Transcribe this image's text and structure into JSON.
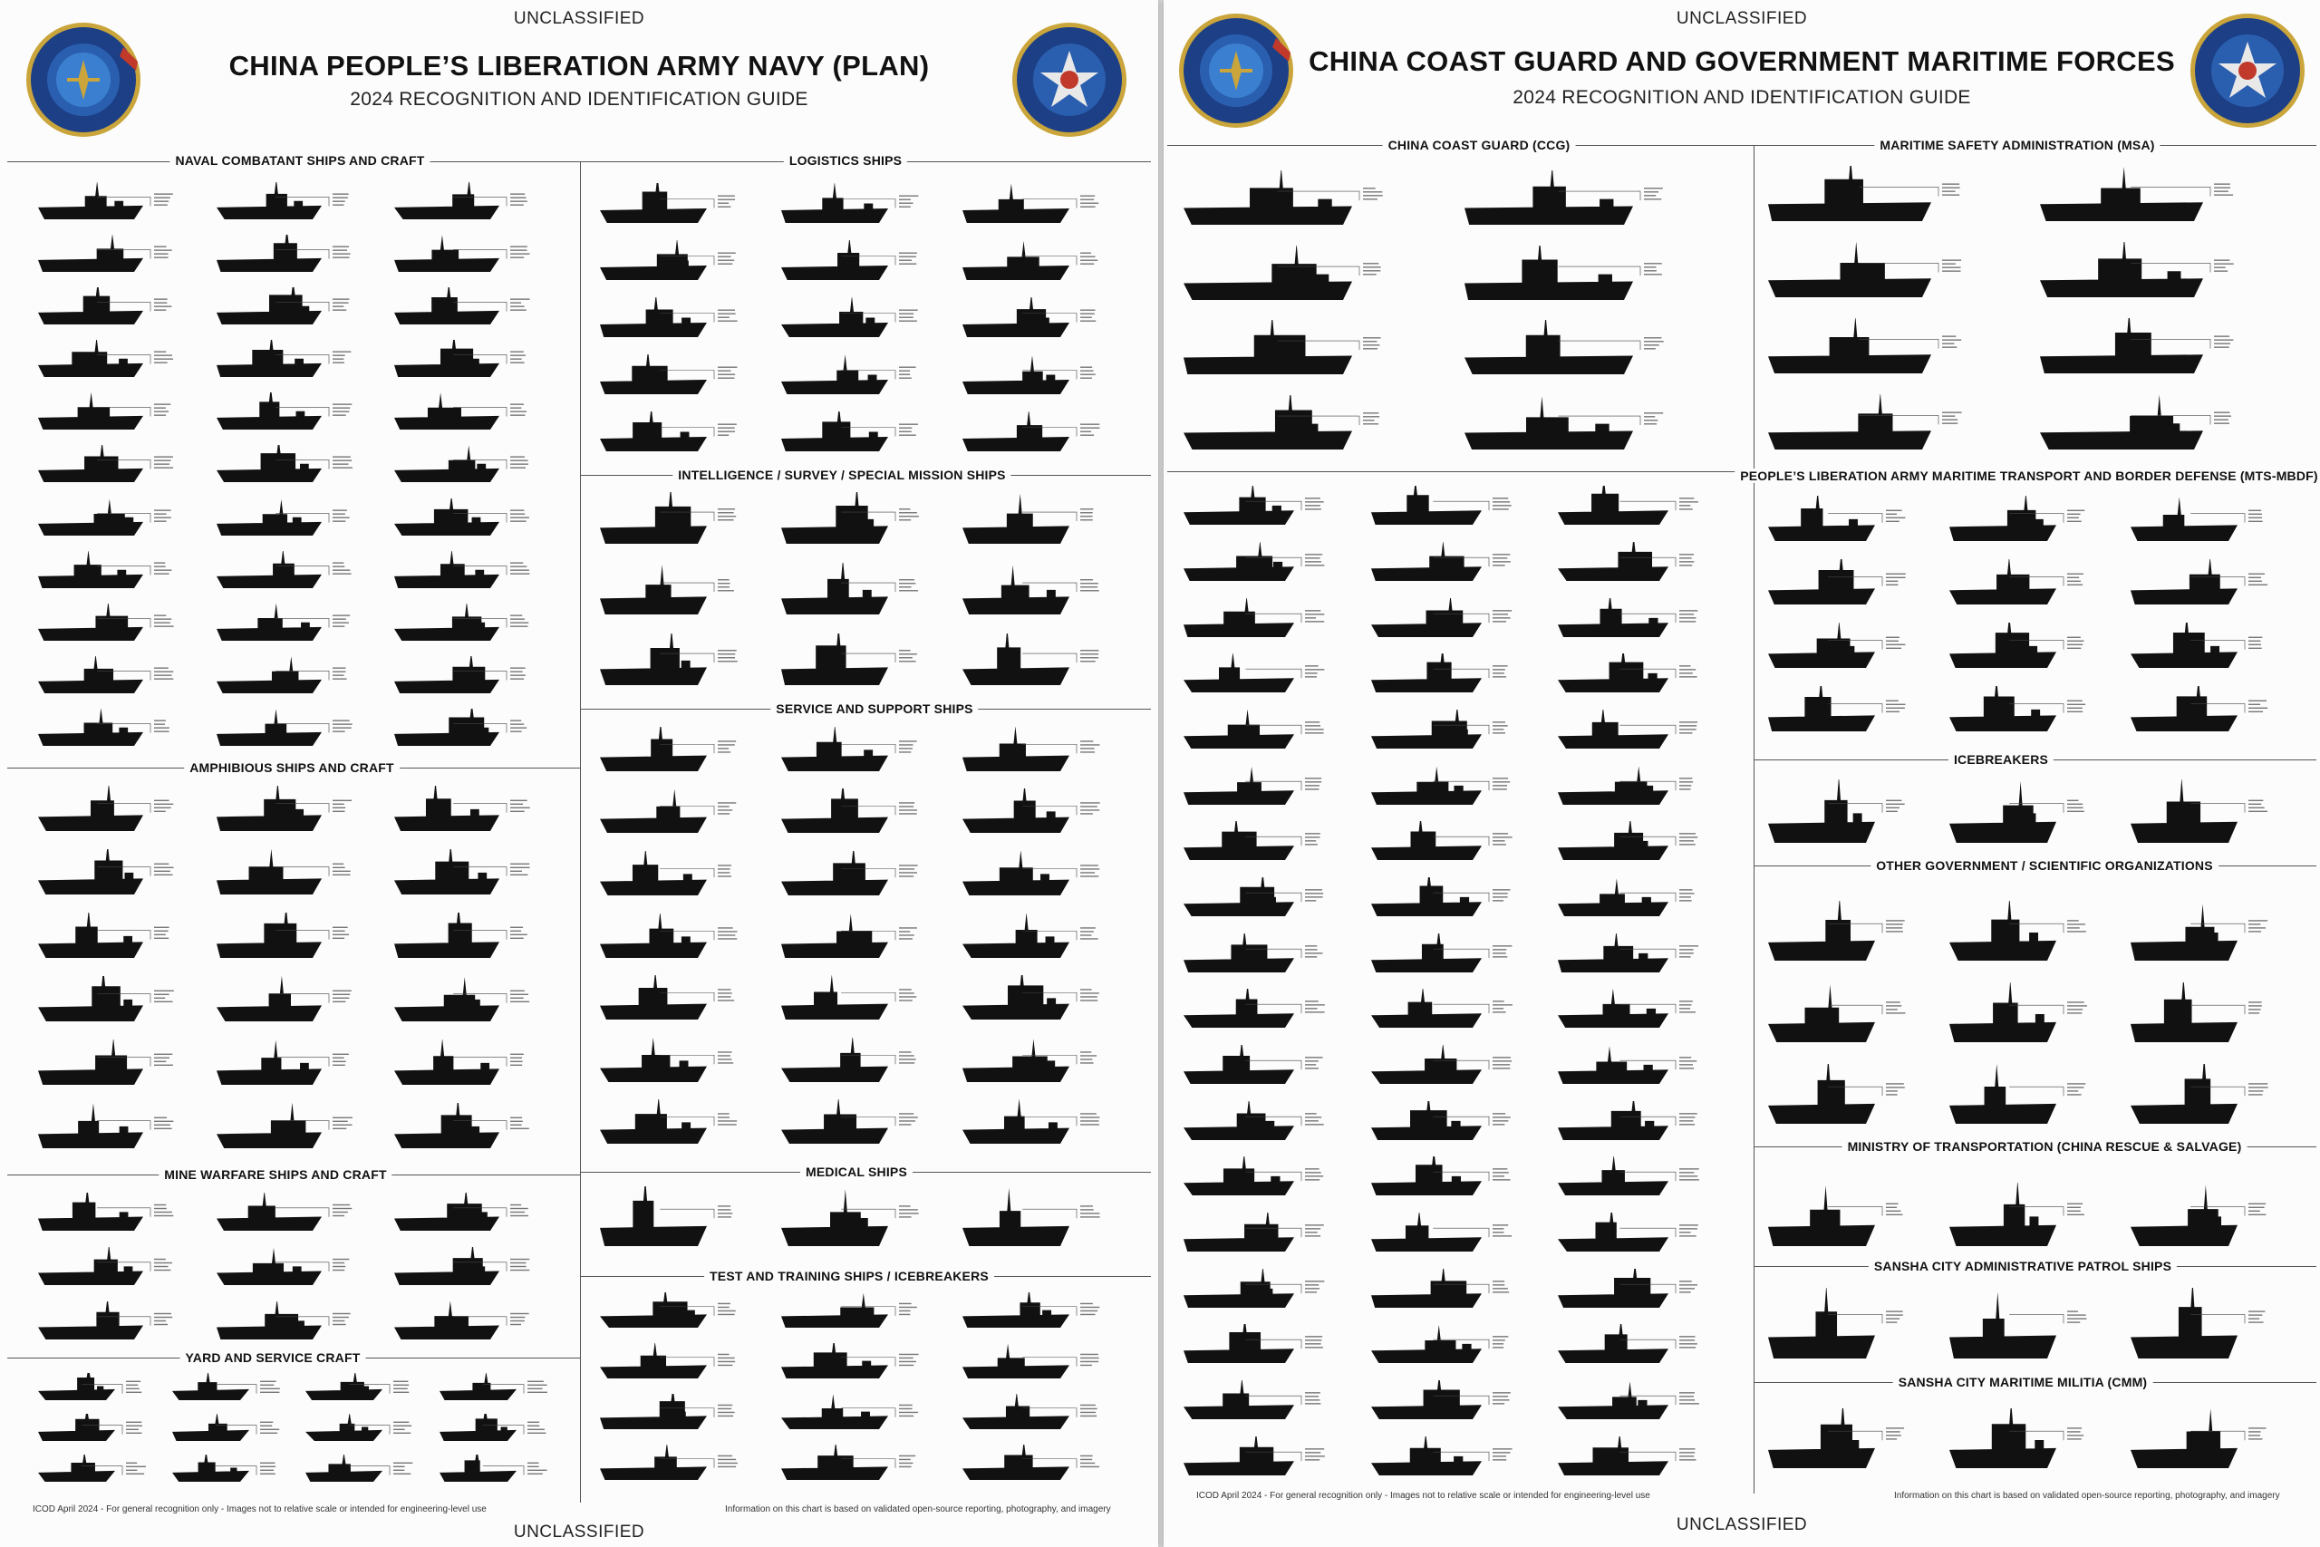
{
  "left_poster": {
    "header_classification": "UNCLASSIFIED",
    "title": "CHINA PEOPLE’S LIBERATION ARMY NAVY (PLAN)",
    "subtitle": "2024 RECOGNITION AND IDENTIFICATION GUIDE",
    "footer_classification": "UNCLASSIFIED",
    "footer_left": "ICOD April 2024 - For general recognition only - Images not to relative scale or intended for engineering-level use",
    "footer_right": "Information on this chart is based on validated open-source reporting, photography, and imagery",
    "sections": [
      {
        "title": "NAVAL COMBATANT SHIPS AND CRAFT"
      },
      {
        "title": "LOGISTICS SHIPS"
      },
      {
        "title": "INTELLIGENCE / SURVEY / SPECIAL MISSION SHIPS"
      },
      {
        "title": "SERVICE AND SUPPORT SHIPS"
      },
      {
        "title": "AMPHIBIOUS SHIPS AND CRAFT"
      },
      {
        "title": "MINE WARFARE SHIPS AND CRAFT"
      },
      {
        "title": "MEDICAL SHIPS"
      },
      {
        "title": "TEST AND TRAINING SHIPS / ICEBREAKERS"
      },
      {
        "title": "YARD AND SERVICE CRAFT"
      }
    ]
  },
  "right_poster": {
    "header_classification": "UNCLASSIFIED",
    "title": "CHINA COAST GUARD AND GOVERNMENT MARITIME FORCES",
    "subtitle": "2024 RECOGNITION AND IDENTIFICATION GUIDE",
    "footer_classification": "UNCLASSIFIED",
    "footer_left": "ICOD April 2024 - For general recognition only - Images not to relative scale or intended for engineering-level use",
    "footer_right": "Information on this chart is based on validated open-source reporting, photography, and imagery",
    "sections": [
      {
        "title": "CHINA COAST GUARD (CCG)"
      },
      {
        "title": "MARITIME SAFETY ADMINISTRATION (MSA)"
      },
      {
        "title": "PEOPLE’S LIBERATION ARMY MARITIME TRANSPORT AND BORDER DEFENSE (MTS-MBDF)"
      },
      {
        "title": "ICEBREAKERS"
      },
      {
        "title": "OTHER GOVERNMENT / SCIENTIFIC ORGANIZATIONS"
      },
      {
        "title": "MINISTRY OF TRANSPORTATION (CHINA RESCUE & SALVAGE)"
      },
      {
        "title": "SANSHA CITY ADMINISTRATIVE PATROL SHIPS"
      },
      {
        "title": "SANSHA CITY MARITIME MILITIA (CMM)"
      }
    ]
  },
  "icons": {
    "seal_left": "naval-intelligence-seal-icon",
    "seal_right": "technical-analysis-seal-icon",
    "ship": "ship-silhouette-icon"
  },
  "colors": {
    "silhouette": "#111111",
    "seal_blue": "#1d3f86",
    "seal_gold": "#c9a53b",
    "accent_red": "#c0392b"
  }
}
